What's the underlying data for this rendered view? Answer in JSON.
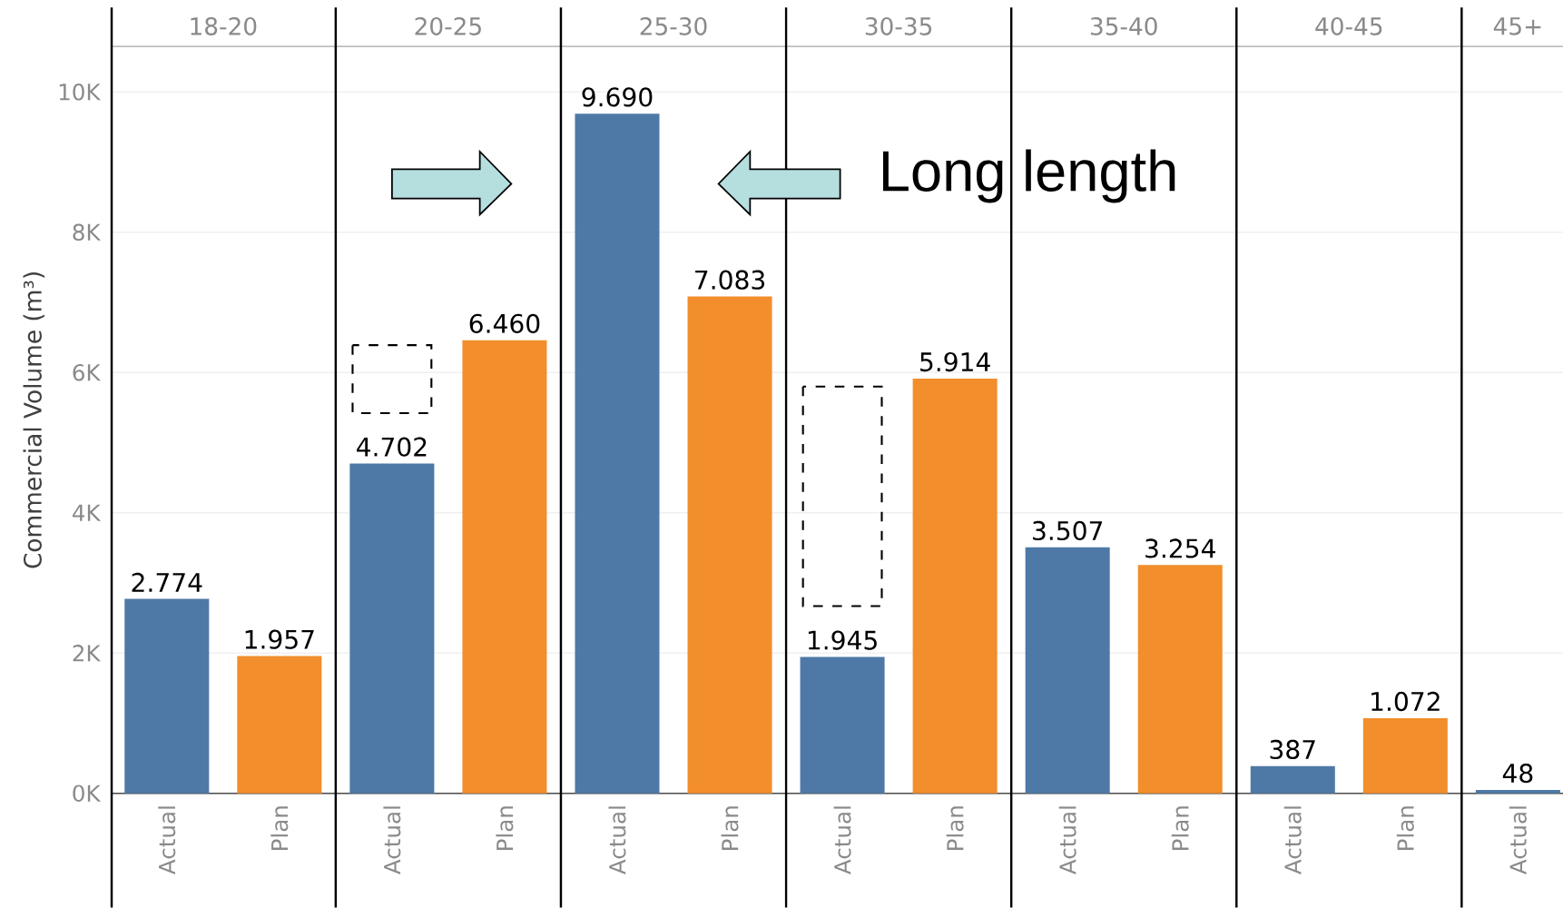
{
  "chart_data": {
    "type": "bar",
    "ylabel": "Commercial Volume (m³)",
    "categories": [
      "Actual",
      "Plan",
      "Actual",
      "Plan",
      "Actual",
      "Plan",
      "Actual",
      "Plan",
      "Actual",
      "Plan",
      "Actual",
      "Plan",
      "Actual"
    ],
    "values": [
      2774,
      1957,
      4702,
      6460,
      9690,
      7083,
      1945,
      5914,
      3507,
      3254,
      387,
      1072,
      48
    ],
    "value_labels": [
      "2.774",
      "1.957",
      "4.702",
      "6.460",
      "9.690",
      "7.083",
      "1.945",
      "5.914",
      "3.507",
      "3.254",
      "387",
      "1.072",
      "48"
    ],
    "colors": [
      "#4e79a7",
      "#f28e2b",
      "#4e79a7",
      "#f28e2b",
      "#4e79a7",
      "#f28e2b",
      "#4e79a7",
      "#f28e2b",
      "#4e79a7",
      "#f28e2b",
      "#4e79a7",
      "#f28e2b",
      "#4e79a7"
    ],
    "ylim": [
      0,
      10650
    ],
    "yticks": [
      {
        "value": 0,
        "label": "0K"
      },
      {
        "value": 2000,
        "label": "2K"
      },
      {
        "value": 4000,
        "label": "4K"
      },
      {
        "value": 6000,
        "label": "6K"
      },
      {
        "value": 8000,
        "label": "8K"
      },
      {
        "value": 10000,
        "label": "10K"
      }
    ],
    "grid": "y",
    "annotations": [
      "18-20",
      "20-25",
      "25-30",
      "30-35",
      "35-40",
      "40-45",
      "45+",
      "Long length"
    ]
  }
}
